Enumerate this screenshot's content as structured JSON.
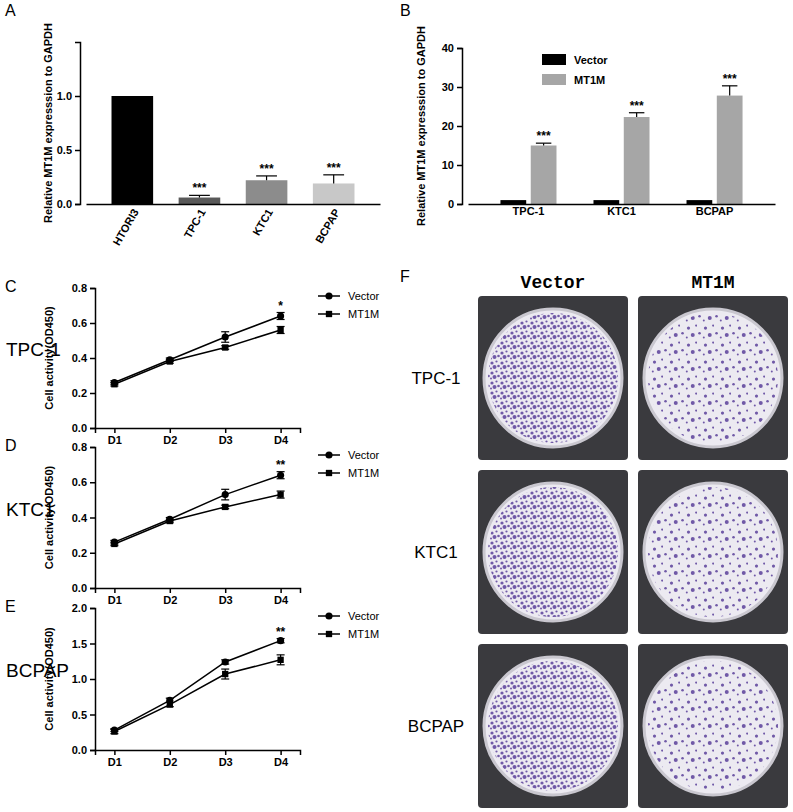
{
  "chart_data": [
    {
      "type": "bar",
      "title": "A",
      "ylabel": "Relative MT1M expresssion to GAPDH",
      "categories": [
        "HTORI3",
        "TPC-1",
        "KTC1",
        "BCPAP"
      ],
      "values": [
        1.0,
        0.06,
        0.22,
        0.19
      ],
      "errors": [
        0,
        0.02,
        0.04,
        0.08
      ],
      "colors": [
        "#000000",
        "#595959",
        "#8c8c8c",
        "#c8c8c8"
      ],
      "ylim": [
        0,
        1.5
      ],
      "yticks": [
        {
          "value": 0,
          "label": "0.0"
        },
        {
          "value": 0.5,
          "label": "0.5"
        },
        {
          "value": 1,
          "label": "1.0"
        }
      ],
      "annotations": [
        {
          "x": "TPC-1",
          "text": "***"
        },
        {
          "x": "KTC1",
          "text": "***"
        },
        {
          "x": "BCPAP",
          "text": "***"
        }
      ]
    },
    {
      "type": "bar",
      "title": "B",
      "ylabel": "Relative MT1M expresssion to GAPDH",
      "categories": [
        "TPC-1",
        "KTC1",
        "BCPAP"
      ],
      "series": [
        {
          "name": "Vector",
          "color": "#000000",
          "values": [
            1,
            1,
            1
          ],
          "errors": [
            0,
            0,
            0
          ]
        },
        {
          "name": "MT1M",
          "color": "#a6a6a6",
          "values": [
            15,
            22.3,
            27.8
          ],
          "errors": [
            0.6,
            1.1,
            2.5
          ]
        }
      ],
      "ylim": [
        0,
        40
      ],
      "yticks": [
        0,
        10,
        20,
        30,
        40
      ],
      "legend": "top-left",
      "annotations": [
        {
          "x": "TPC-1",
          "series": "MT1M",
          "text": "***"
        },
        {
          "x": "KTC1",
          "series": "MT1M",
          "text": "***"
        },
        {
          "x": "BCPAP",
          "series": "MT1M",
          "text": "***"
        }
      ]
    },
    {
      "type": "line",
      "title": "C",
      "subtitle": "TPC-1",
      "ylabel": "Cell activity(OD450)",
      "categories": [
        "D1",
        "D2",
        "D3",
        "D4"
      ],
      "series": [
        {
          "name": "Vector",
          "color": "#000000",
          "marker": "circle",
          "values": [
            0.26,
            0.39,
            0.52,
            0.64
          ],
          "errors": [
            0.01,
            0.01,
            0.03,
            0.02
          ]
        },
        {
          "name": "MT1M",
          "color": "#000000",
          "marker": "square",
          "values": [
            0.25,
            0.38,
            0.46,
            0.56
          ],
          "errors": [
            0.01,
            0.01,
            0.01,
            0.02
          ]
        }
      ],
      "ylim": [
        0,
        0.8
      ],
      "yticks": [
        {
          "value": 0,
          "label": "0.0"
        },
        {
          "value": 0.2,
          "label": "0.2"
        },
        {
          "value": 0.4,
          "label": "0.4"
        },
        {
          "value": 0.6,
          "label": "0.6"
        },
        {
          "value": 0.8,
          "label": "0.8"
        }
      ],
      "legend": "right",
      "annotations": [
        {
          "x": "D4",
          "text": "*"
        }
      ]
    },
    {
      "type": "line",
      "title": "D",
      "subtitle": "KTC1",
      "ylabel": "Cell activity(OD450)",
      "categories": [
        "D1",
        "D2",
        "D3",
        "D4"
      ],
      "series": [
        {
          "name": "Vector",
          "color": "#000000",
          "marker": "circle",
          "values": [
            0.26,
            0.39,
            0.53,
            0.64
          ],
          "errors": [
            0.01,
            0.01,
            0.03,
            0.02
          ]
        },
        {
          "name": "MT1M",
          "color": "#000000",
          "marker": "square",
          "values": [
            0.25,
            0.38,
            0.46,
            0.53
          ],
          "errors": [
            0.01,
            0.01,
            0.01,
            0.02
          ]
        }
      ],
      "ylim": [
        0,
        0.8
      ],
      "yticks": [
        {
          "value": 0,
          "label": "0.0"
        },
        {
          "value": 0.2,
          "label": "0.2"
        },
        {
          "value": 0.4,
          "label": "0.4"
        },
        {
          "value": 0.6,
          "label": "0.6"
        },
        {
          "value": 0.8,
          "label": "0.8"
        }
      ],
      "legend": "right",
      "annotations": [
        {
          "x": "D4",
          "text": "**"
        }
      ]
    },
    {
      "type": "line",
      "title": "E",
      "subtitle": "BCPAP",
      "ylabel": "Cell activity(OD450)",
      "categories": [
        "D1",
        "D2",
        "D3",
        "D4"
      ],
      "series": [
        {
          "name": "Vector",
          "color": "#000000",
          "marker": "circle",
          "values": [
            0.28,
            0.7,
            1.24,
            1.54
          ],
          "errors": [
            0.02,
            0.03,
            0.03,
            0.03
          ]
        },
        {
          "name": "MT1M",
          "color": "#000000",
          "marker": "square",
          "values": [
            0.26,
            0.64,
            1.07,
            1.27
          ],
          "errors": [
            0.03,
            0.03,
            0.07,
            0.07
          ]
        }
      ],
      "ylim": [
        0,
        2
      ],
      "yticks": [
        {
          "value": 0,
          "label": "0.0"
        },
        {
          "value": 0.5,
          "label": "0.5"
        },
        {
          "value": 1,
          "label": "1.0"
        },
        {
          "value": 1.5,
          "label": "1.5"
        },
        {
          "value": 2,
          "label": "2.0"
        }
      ],
      "legend": "right",
      "annotations": [
        {
          "x": "D4",
          "text": "**"
        }
      ]
    }
  ],
  "image_panel": {
    "title": "F",
    "columns": [
      "Vector",
      "MT1M"
    ],
    "rows": [
      "TPC-1",
      "KTC1",
      "BCPAP"
    ]
  }
}
